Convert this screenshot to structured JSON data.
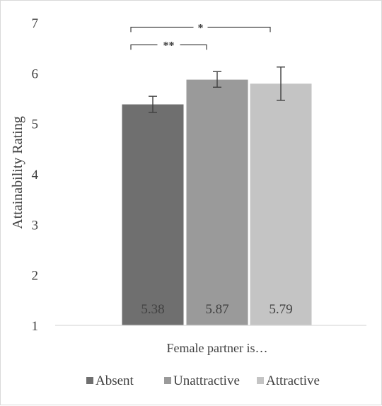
{
  "chart_data": {
    "type": "bar",
    "title": "",
    "xlabel": "Female partner is…",
    "ylabel": "Attainability Rating",
    "ylim": [
      1,
      7
    ],
    "yticks": [
      "1",
      "2",
      "3",
      "4",
      "5",
      "6",
      "7"
    ],
    "grid": false,
    "legend_position": "bottom",
    "categories": [
      "Absent",
      "Unattractive",
      "Attractive"
    ],
    "values": [
      5.38,
      5.87,
      5.79
    ],
    "value_labels": [
      "5.38",
      "5.87",
      "5.79"
    ],
    "error_bars": [
      {
        "low": 5.22,
        "high": 5.54
      },
      {
        "low": 5.72,
        "high": 6.03
      },
      {
        "low": 5.46,
        "high": 6.12
      }
    ],
    "colors": [
      "#6f6f6f",
      "#9a9a9a",
      "#c4c4c4"
    ],
    "significance": [
      {
        "from": 0,
        "to": 2,
        "label": "*",
        "y": 6.91
      },
      {
        "from": 0,
        "to": 1,
        "label": "**",
        "y": 6.56
      }
    ]
  }
}
